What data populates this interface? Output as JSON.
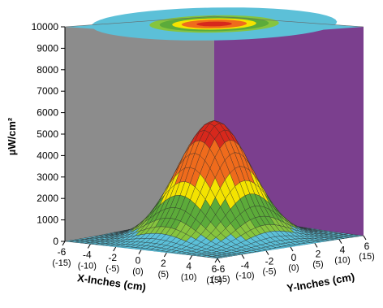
{
  "chart_data": {
    "type": "surface",
    "title": "",
    "zlabel": "µW/cm²",
    "xlabel": "X-Inches (cm)",
    "ylabel": "Y-Inches (cm)",
    "zlim": [
      0,
      10000
    ],
    "z_ticks": [
      "0",
      "1000",
      "2000",
      "3000",
      "4000",
      "5000",
      "6000",
      "7000",
      "8000",
      "9000",
      "10000"
    ],
    "x_ticks": [
      {
        "inches": "-6",
        "cm": "(-15)"
      },
      {
        "inches": "-4",
        "cm": "(-10)"
      },
      {
        "inches": "-2",
        "cm": "(-5)"
      },
      {
        "inches": "0",
        "cm": "(0)"
      },
      {
        "inches": "2",
        "cm": "(5)"
      },
      {
        "inches": "4",
        "cm": "(10)"
      },
      {
        "inches": "6",
        "cm": "(15)"
      }
    ],
    "y_ticks": [
      {
        "inches": "-6",
        "cm": "(-15)"
      },
      {
        "inches": "-4",
        "cm": "(-10)"
      },
      {
        "inches": "-2",
        "cm": "(-5)"
      },
      {
        "inches": "0",
        "cm": "(0)"
      },
      {
        "inches": "2",
        "cm": "(5)"
      },
      {
        "inches": "4",
        "cm": "(10)"
      },
      {
        "inches": "6",
        "cm": "(15)"
      }
    ],
    "peak": {
      "x": 0,
      "y": 0,
      "z": 5500
    },
    "color_bands": [
      {
        "from": 0,
        "to": 500,
        "color": "#5cc0d8"
      },
      {
        "from": 500,
        "to": 1000,
        "color": "#86c43e"
      },
      {
        "from": 1000,
        "to": 2000,
        "color": "#5cab3a"
      },
      {
        "from": 2000,
        "to": 3000,
        "color": "#f4e300"
      },
      {
        "from": 3000,
        "to": 4600,
        "color": "#ef6b1c"
      },
      {
        "from": 4600,
        "to": 6000,
        "color": "#d7281c"
      }
    ],
    "walls": {
      "left": "#8c8c8c",
      "right": "#7b3f8e",
      "floor": "#5cc0d8"
    }
  }
}
